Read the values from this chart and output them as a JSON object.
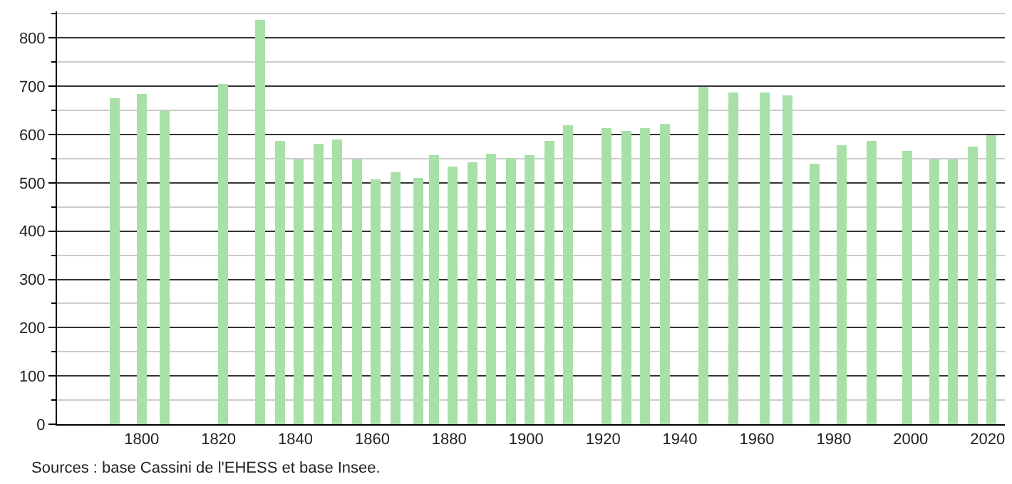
{
  "chart_data": {
    "type": "bar",
    "x": [
      1793,
      1800,
      1806,
      1821,
      1831,
      1836,
      1841,
      1846,
      1851,
      1856,
      1861,
      1866,
      1872,
      1876,
      1881,
      1886,
      1891,
      1896,
      1901,
      1906,
      1911,
      1921,
      1926,
      1931,
      1936,
      1946,
      1954,
      1962,
      1968,
      1975,
      1982,
      1990,
      1999,
      2006,
      2011,
      2016,
      2021
    ],
    "values": [
      676,
      684,
      649,
      706,
      838,
      588,
      549,
      582,
      591,
      549,
      507,
      521,
      509,
      556,
      533,
      543,
      559,
      551,
      556,
      588,
      618,
      612,
      606,
      614,
      621,
      698,
      688,
      688,
      682,
      541,
      578,
      588,
      567,
      549,
      549,
      576,
      598
    ],
    "color": "#a8e0a8",
    "xlim": [
      1778,
      2024.5
    ],
    "xticks": [
      1800,
      1820,
      1840,
      1860,
      1880,
      1900,
      1920,
      1940,
      1960,
      1980,
      2000,
      2020
    ],
    "ylim": [
      0,
      855
    ],
    "yticks": [
      0,
      100,
      200,
      300,
      400,
      500,
      600,
      700,
      800
    ],
    "grid": "y",
    "annotations": [
      "Sources : base Cassini de l'EHESS et base Insee."
    ]
  }
}
